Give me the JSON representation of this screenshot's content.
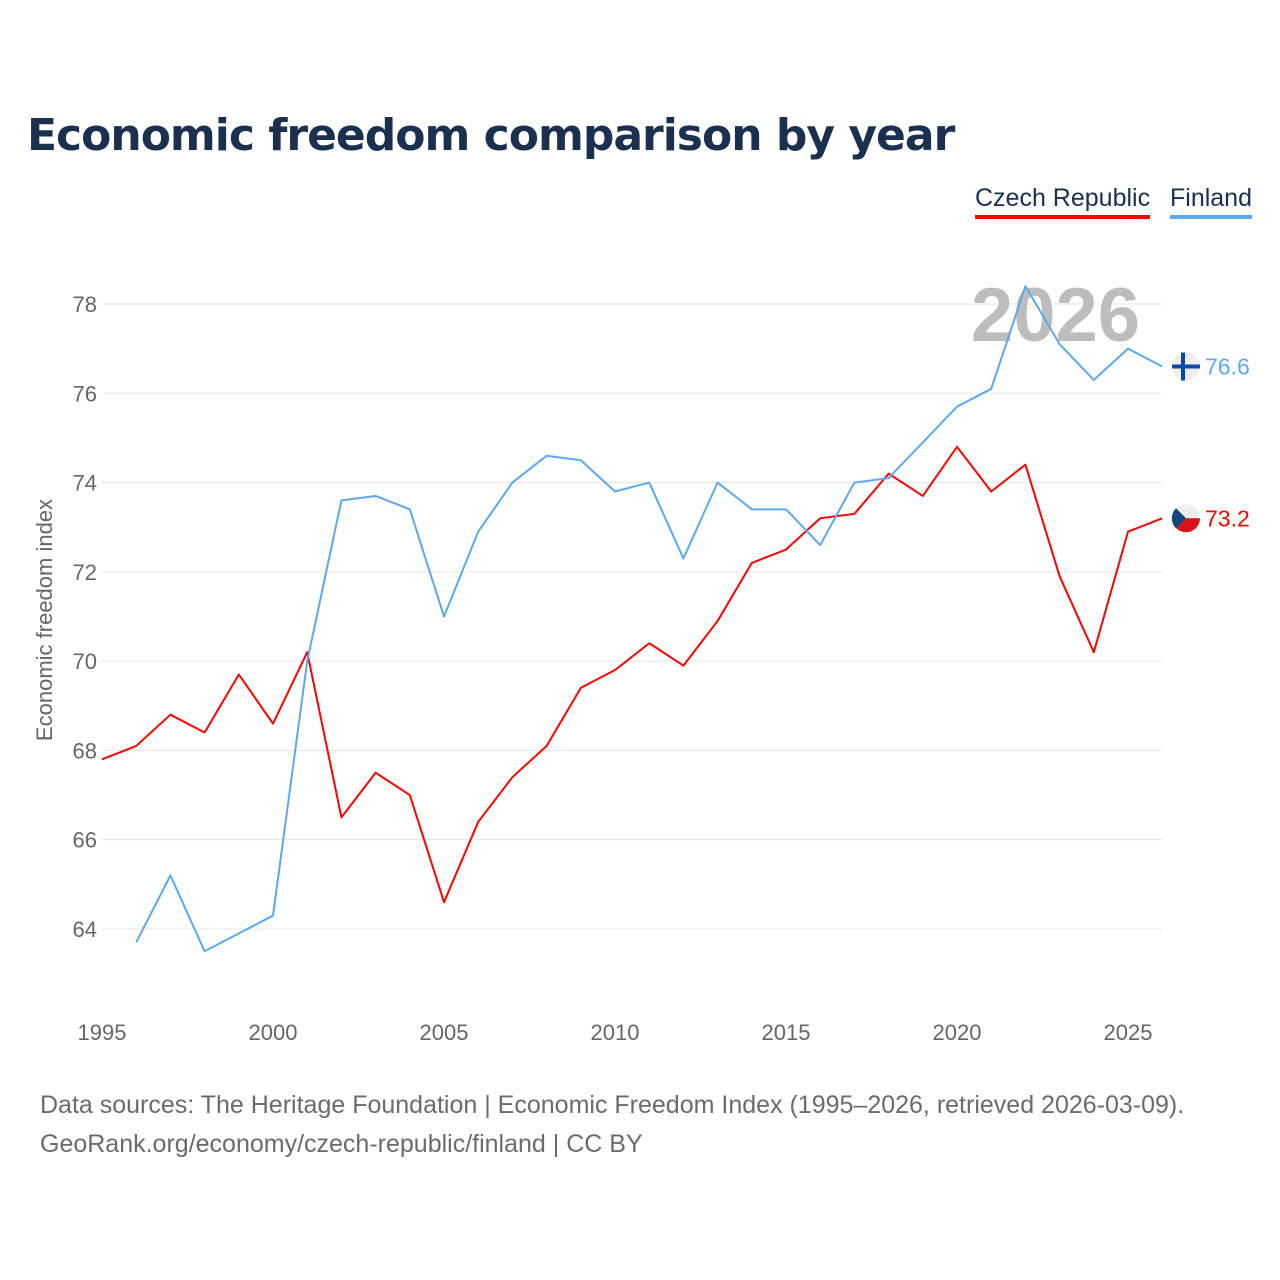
{
  "chart_data": {
    "type": "line",
    "title": "Economic freedom comparison by year",
    "xlabel": "",
    "ylabel": "Economic freedom index",
    "xlim": [
      1995,
      2026
    ],
    "ylim": [
      62.5,
      79.5
    ],
    "x_ticks": [
      1995,
      2000,
      2005,
      2010,
      2015,
      2020,
      2025
    ],
    "y_ticks": [
      64,
      66,
      68,
      70,
      72,
      74,
      76,
      78
    ],
    "grid": true,
    "legend_position": "top-right",
    "year_watermark": "2026",
    "series": [
      {
        "name": "Czech Republic",
        "color": "#ff0000",
        "end_label": "73.2",
        "flag": "czech-flag",
        "x": [
          1995,
          1996,
          1997,
          1998,
          1999,
          2000,
          2001,
          2002,
          2003,
          2004,
          2005,
          2006,
          2007,
          2008,
          2009,
          2010,
          2011,
          2012,
          2013,
          2014,
          2015,
          2016,
          2017,
          2018,
          2019,
          2020,
          2021,
          2022,
          2023,
          2024,
          2025,
          2026
        ],
        "values": [
          67.8,
          68.1,
          68.8,
          68.4,
          69.7,
          68.6,
          70.2,
          66.5,
          67.5,
          67.0,
          64.6,
          66.4,
          67.4,
          68.1,
          69.4,
          69.8,
          70.4,
          69.9,
          70.9,
          72.2,
          72.5,
          73.2,
          73.3,
          74.2,
          73.7,
          74.8,
          73.8,
          74.4,
          71.9,
          70.2,
          72.9,
          73.2
        ]
      },
      {
        "name": "Finland",
        "color": "#5ea8ec",
        "end_label": "76.6",
        "flag": "finland-flag",
        "x": [
          1996,
          1997,
          1998,
          1999,
          2000,
          2001,
          2002,
          2003,
          2004,
          2005,
          2006,
          2007,
          2008,
          2009,
          2010,
          2011,
          2012,
          2013,
          2014,
          2015,
          2016,
          2017,
          2018,
          2019,
          2020,
          2021,
          2022,
          2023,
          2024,
          2025,
          2026
        ],
        "values": [
          63.7,
          65.2,
          63.5,
          63.9,
          64.3,
          70.0,
          73.6,
          73.7,
          73.4,
          71.0,
          72.9,
          74.0,
          74.6,
          74.5,
          73.8,
          74.0,
          72.3,
          74.0,
          73.4,
          73.4,
          72.6,
          74.0,
          74.1,
          74.9,
          75.7,
          76.1,
          78.4,
          77.1,
          76.3,
          77.0,
          76.6
        ]
      }
    ]
  },
  "footer": {
    "line1": "Data sources: The Heritage Foundation | Economic Freedom Index (1995–2026, retrieved 2026-03-09).",
    "line2": "GeoRank.org/economy/czech-republic/finland | CC BY"
  }
}
